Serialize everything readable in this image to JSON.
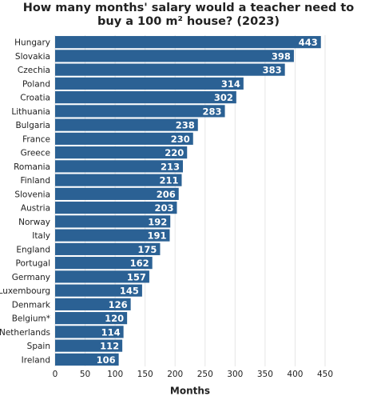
{
  "chart_data": {
    "type": "hbar",
    "title": "How many months' salary would a teacher need to buy a 100 m² house? (2023)",
    "x_label": "Months",
    "categories": [
      "Hungary",
      "Slovakia",
      "Czechia",
      "Poland",
      "Croatia",
      "Lithuania",
      "Bulgaria",
      "France",
      "Greece",
      "Romania",
      "Finland",
      "Slovenia",
      "Austria",
      "Norway",
      "Italy",
      "England",
      "Portugal",
      "Germany",
      "Luxembourg",
      "Denmark",
      "Belgium*",
      "Netherlands",
      "Spain",
      "Ireland"
    ],
    "values": [
      443,
      398,
      383,
      314,
      302,
      283,
      238,
      230,
      220,
      213,
      211,
      206,
      203,
      192,
      191,
      175,
      162,
      157,
      145,
      126,
      120,
      114,
      112,
      106
    ],
    "color": "#2b6194",
    "xlim": [
      0,
      450
    ],
    "xticks": [
      0,
      50,
      100,
      150,
      200,
      250,
      300,
      350,
      400,
      450
    ],
    "grid": true
  }
}
